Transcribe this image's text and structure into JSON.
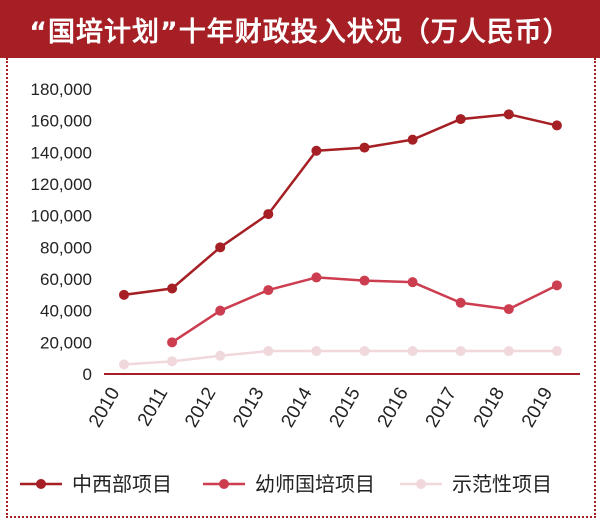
{
  "title": "“国培计划”十年财政投入状况（万人民币）",
  "chart_data": {
    "type": "line",
    "title": "“国培计划”十年财政投入状况（万人民币）",
    "x": [
      "2010",
      "2011",
      "2012",
      "2013",
      "2014",
      "2015",
      "2016",
      "2017",
      "2018",
      "2019"
    ],
    "y_ticks": [
      "0",
      "20,000",
      "40,000",
      "60,000",
      "80,000",
      "100,000",
      "120,000",
      "140,000",
      "160,000",
      "180,000"
    ],
    "ylim": [
      0,
      180000
    ],
    "series": [
      {
        "name": "中西部项目",
        "color": "#a51f24",
        "values": [
          50000,
          54000,
          80000,
          101000,
          141000,
          143000,
          148000,
          161000,
          164000,
          157000
        ]
      },
      {
        "name": "幼师国培项目",
        "color": "#cc3d50",
        "values": [
          null,
          20000,
          40000,
          53000,
          61000,
          59000,
          58000,
          45000,
          41000,
          56000
        ]
      },
      {
        "name": "示范性项目",
        "color": "#f0d8dc",
        "values": [
          6000,
          8000,
          11500,
          14500,
          14500,
          14500,
          14500,
          14500,
          14500,
          14500
        ]
      }
    ],
    "legend": "bottom"
  }
}
